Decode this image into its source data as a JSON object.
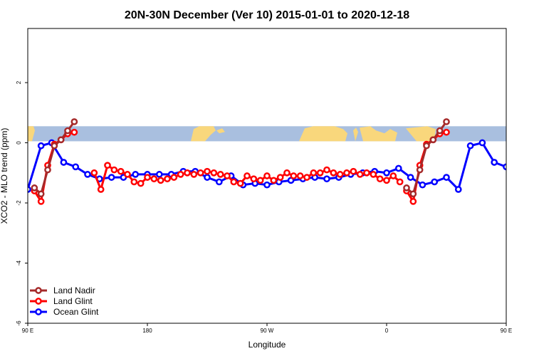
{
  "chart_data": {
    "type": "line",
    "title": "20N-30N December (Ver 10)   2015-01-01 to 2020-12-18",
    "xlabel": "Longitude",
    "ylabel": "XCO2 - MLO trend (ppm)",
    "xlim": [
      90,
      450
    ],
    "ylim": [
      -6,
      3.8
    ],
    "x_ticks": [
      {
        "value": 90,
        "label": "90 E"
      },
      {
        "value": 180,
        "label": "180"
      },
      {
        "value": 270,
        "label": "90 W"
      },
      {
        "value": 360,
        "label": "0"
      },
      {
        "value": 450,
        "label": "90 E"
      },
      {
        "value": 540,
        "label": "180"
      }
    ],
    "y_ticks": [
      {
        "value": 2,
        "label": "2"
      },
      {
        "value": 0,
        "label": "0"
      },
      {
        "value": -2,
        "label": "-2"
      },
      {
        "value": -4,
        "label": "-4"
      },
      {
        "value": -6,
        "label": "-6"
      }
    ],
    "map_band": {
      "ymin": 0.05,
      "ymax": 0.55,
      "ocean_color": "#a9bfdf",
      "land_color": "#f9d77c"
    },
    "legend": {
      "position": "bottom-left"
    },
    "series": [
      {
        "name": "Land Nadir",
        "color": "#a52a2a",
        "segments": [
          {
            "x": [
              95,
              100,
              105,
              110,
              115,
              120,
              125
            ],
            "y": [
              -1.5,
              -1.7,
              -0.9,
              -0.1,
              0.1,
              0.4,
              0.7
            ]
          },
          {
            "x": [
              375,
              380,
              385,
              390,
              395,
              400,
              405
            ],
            "y": [
              -1.5,
              -1.7,
              -0.9,
              -0.1,
              0.1,
              0.4,
              0.7
            ]
          }
        ]
      },
      {
        "name": "Land Glint",
        "color": "#ff0000",
        "segments": [
          {
            "x": [
              95,
              100,
              105,
              110,
              115,
              120,
              125
            ],
            "y": [
              -1.6,
              -1.95,
              -0.75,
              -0.05,
              0.1,
              0.3,
              0.35
            ]
          },
          {
            "x": [
              375,
              380,
              385,
              390,
              395,
              400,
              405
            ],
            "y": [
              -1.6,
              -1.95,
              -0.75,
              -0.05,
              0.1,
              0.3,
              0.35
            ]
          },
          {
            "x": [
              140,
              145,
              150,
              155,
              160,
              165,
              170,
              175,
              180,
              185,
              190,
              195,
              200,
              205,
              210,
              215,
              220,
              225,
              230,
              235,
              240,
              245,
              250,
              255,
              260,
              265,
              270,
              275,
              280,
              285,
              290,
              295,
              300,
              305,
              310,
              315,
              320,
              325,
              330,
              335,
              340,
              345,
              350,
              355,
              360,
              365,
              370
            ],
            "y": [
              -1.0,
              -1.55,
              -0.75,
              -0.9,
              -0.95,
              -1.05,
              -1.3,
              -1.35,
              -1.15,
              -1.2,
              -1.25,
              -1.2,
              -1.15,
              -1.05,
              -1.0,
              -1.05,
              -1.0,
              -0.95,
              -1.0,
              -1.05,
              -1.1,
              -1.3,
              -1.35,
              -1.1,
              -1.2,
              -1.25,
              -1.1,
              -1.25,
              -1.15,
              -1.0,
              -1.1,
              -1.1,
              -1.15,
              -1.0,
              -1.0,
              -0.9,
              -1.0,
              -1.05,
              -1.0,
              -0.95,
              -1.05,
              -1.0,
              -1.05,
              -1.2,
              -1.25,
              -1.1,
              -1.3
            ]
          }
        ]
      },
      {
        "name": "Ocean Glint",
        "color": "#0000ff",
        "segments": [
          {
            "x": [
              90,
              100,
              108,
              117,
              126,
              135,
              144,
              153,
              162,
              171,
              180,
              189,
              198,
              207,
              216,
              225,
              234,
              243,
              252,
              261,
              270,
              279,
              288,
              297,
              306,
              315,
              324,
              333,
              342,
              351,
              360,
              369,
              378,
              387,
              396,
              405,
              414,
              423,
              432,
              441,
              450
            ],
            "y": [
              -1.55,
              -0.1,
              0.0,
              -0.65,
              -0.8,
              -1.05,
              -1.2,
              -1.15,
              -1.15,
              -1.05,
              -1.05,
              -1.05,
              -1.05,
              -0.95,
              -0.95,
              -1.15,
              -1.3,
              -1.1,
              -1.4,
              -1.35,
              -1.4,
              -1.3,
              -1.25,
              -1.2,
              -1.15,
              -1.2,
              -1.15,
              -1.05,
              -1.0,
              -0.95,
              -1.0,
              -0.85,
              -1.15,
              -1.4,
              -1.3,
              -1.15,
              -1.55,
              -0.1,
              0.0,
              -0.65,
              -0.8
            ]
          }
        ]
      }
    ]
  }
}
